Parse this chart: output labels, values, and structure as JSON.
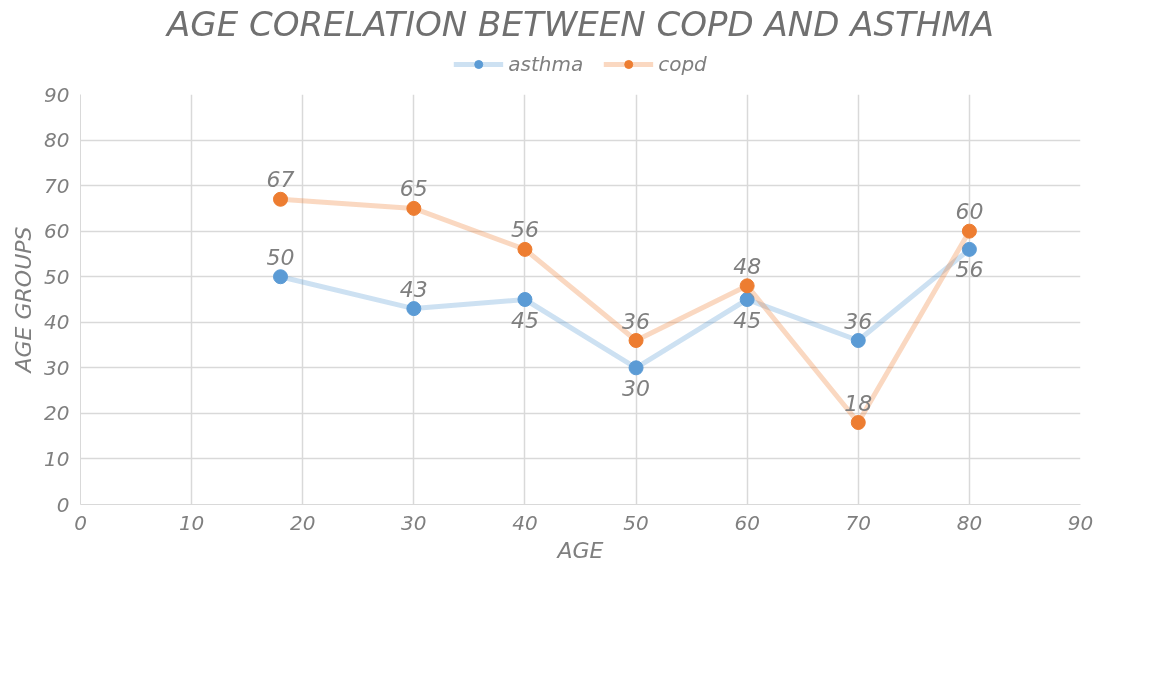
{
  "chart_data": {
    "type": "line",
    "title": "AGE CORELATION BETWEEN COPD AND ASTHMA",
    "xlabel": "AGE",
    "ylabel": "AGE GROUPS",
    "x": [
      18,
      30,
      40,
      50,
      60,
      70,
      80
    ],
    "series": [
      {
        "name": "asthma",
        "color": "#5b9bd5",
        "values": [
          50,
          43,
          45,
          30,
          45,
          36,
          56
        ]
      },
      {
        "name": "copd",
        "color": "#ed7d31",
        "values": [
          67,
          65,
          56,
          36,
          48,
          18,
          60
        ]
      }
    ],
    "xlim": [
      0,
      90
    ],
    "xticks": [
      0,
      10,
      20,
      30,
      40,
      50,
      60,
      70,
      80,
      90
    ],
    "ylim": [
      0,
      90
    ],
    "yticks": [
      0,
      10,
      20,
      30,
      40,
      50,
      60,
      70,
      80,
      90
    ],
    "grid": true,
    "legend": "top",
    "marker": "circle",
    "line_style": "solid",
    "data_labels": true
  }
}
